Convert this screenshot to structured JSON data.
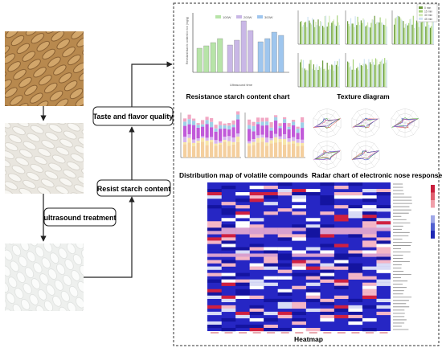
{
  "process": {
    "ultrasound_label": "ultrasound treatment",
    "resist_label": "Resist starch content",
    "taste_label": "Taste and flavor quality"
  },
  "panels": {
    "resistance_title": "Resistance starch content chart",
    "texture_title": "Texture diagram",
    "volatile_title": "Distribution map of volatile compounds",
    "radar_title": "Radar chart of electronic nose response",
    "heatmap_title": "Heatmap"
  },
  "resistance_chart": {
    "legend": [
      "100W",
      "200W",
      "300W"
    ],
    "xlabel": "Ultrasound time"
  },
  "texture_legend": [
    "0 min",
    "15 min",
    "30 min",
    "45 min"
  ],
  "colors": {
    "green": "#b7e4a8",
    "purple": "#c9b7e6",
    "blue": "#9fc6ee",
    "heat_blue": "#2323c8",
    "heat_red": "#d02040"
  }
}
